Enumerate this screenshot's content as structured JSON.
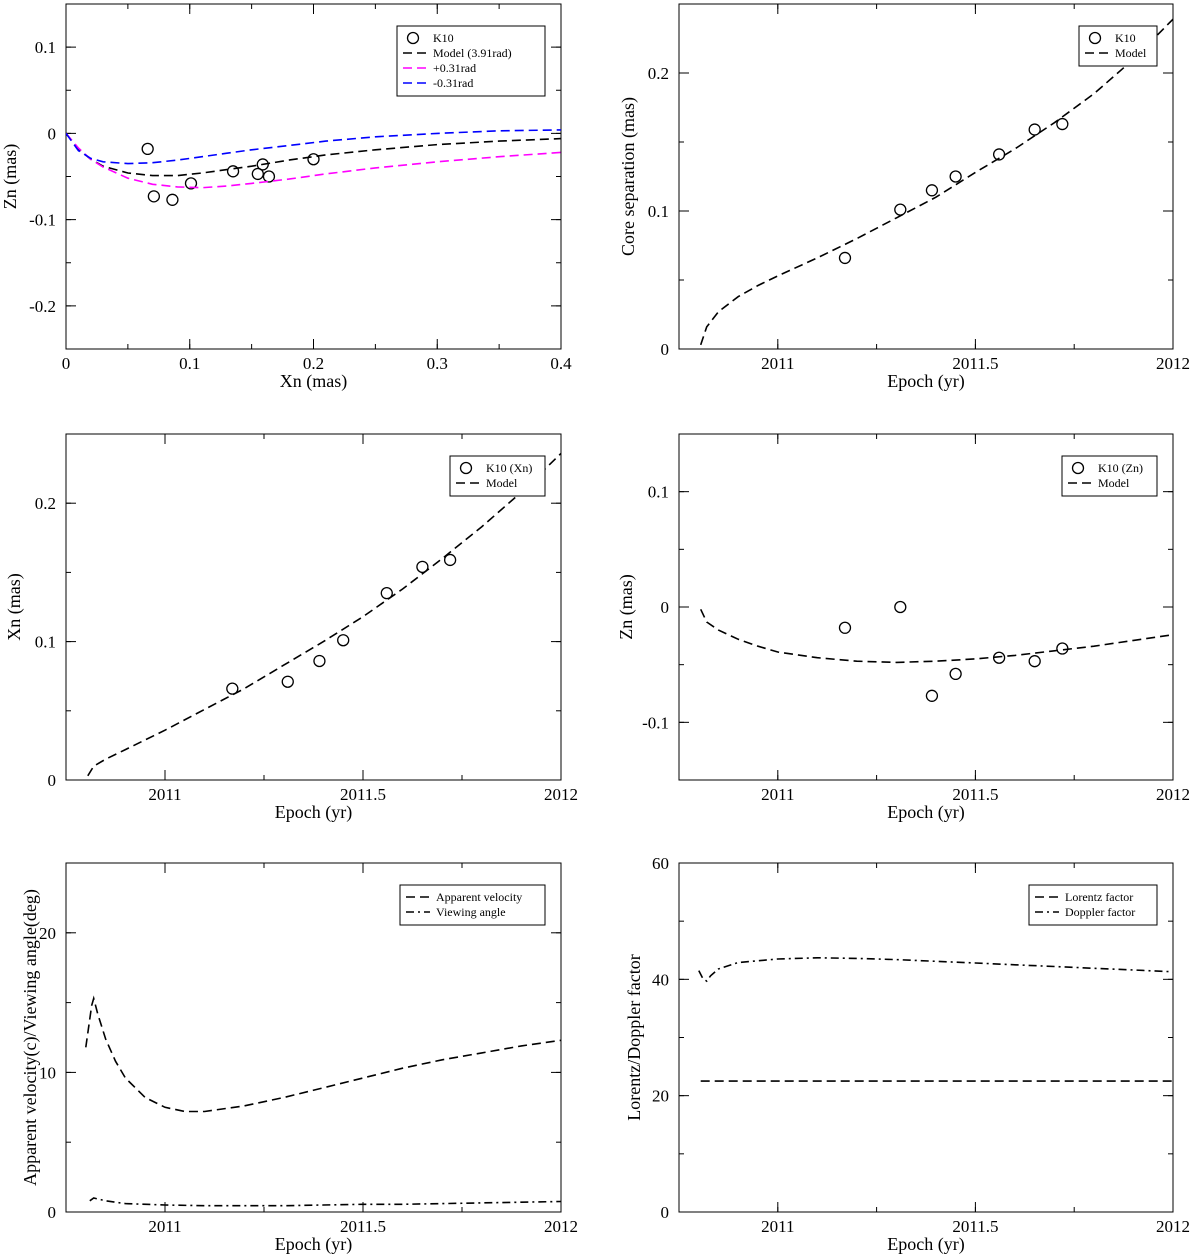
{
  "figure": {
    "background": "#ffffff"
  },
  "chart_data": [
    {
      "id": "p1",
      "type": "line",
      "title": "",
      "xlabel": "Xn (mas)",
      "ylabel": "Zn (mas)",
      "xlim": [
        0,
        0.4
      ],
      "ylim": [
        -0.25,
        0.15
      ],
      "xticks": [
        0,
        0.1,
        0.2,
        0.3,
        0.4
      ],
      "xtick_labels": [
        "0",
        "0.1",
        "0.2",
        "0.3",
        "0.4"
      ],
      "yticks": [
        -0.2,
        -0.1,
        0,
        0.1
      ],
      "ytick_labels": [
        "-0.2",
        "-0.1",
        "0",
        "0.1"
      ],
      "xminor": 0.05,
      "yminor": 0.05,
      "legend": {
        "position": "top-right"
      },
      "series": [
        {
          "name": "K10",
          "kind": "points",
          "color": "#000000",
          "x": [
            0.066,
            0.071,
            0.086,
            0.101,
            0.135,
            0.155,
            0.159,
            0.164,
            0.2
          ],
          "y": [
            -0.018,
            -0.073,
            -0.077,
            -0.058,
            -0.044,
            -0.047,
            -0.036,
            -0.05,
            -0.03
          ]
        },
        {
          "name": "Model (3.91rad)",
          "kind": "line",
          "dash": "dashed",
          "color": "#000000",
          "x": [
            0,
            0.01,
            0.02,
            0.03,
            0.05,
            0.07,
            0.09,
            0.11,
            0.13,
            0.15,
            0.18,
            0.21,
            0.25,
            0.3,
            0.35,
            0.4
          ],
          "y": [
            0,
            -0.018,
            -0.03,
            -0.038,
            -0.046,
            -0.049,
            -0.049,
            -0.046,
            -0.042,
            -0.038,
            -0.031,
            -0.025,
            -0.019,
            -0.013,
            -0.009,
            -0.006
          ]
        },
        {
          "name": "+0.31rad",
          "kind": "line",
          "dash": "dashed",
          "color": "#ff00ff",
          "x": [
            0,
            0.01,
            0.02,
            0.03,
            0.05,
            0.07,
            0.09,
            0.11,
            0.13,
            0.15,
            0.18,
            0.21,
            0.25,
            0.3,
            0.35,
            0.4
          ],
          "y": [
            0,
            -0.017,
            -0.03,
            -0.039,
            -0.052,
            -0.059,
            -0.062,
            -0.063,
            -0.061,
            -0.058,
            -0.053,
            -0.047,
            -0.04,
            -0.033,
            -0.027,
            -0.022
          ]
        },
        {
          "name": "-0.31rad",
          "kind": "line",
          "dash": "dashed",
          "color": "#0000ff",
          "x": [
            0,
            0.01,
            0.02,
            0.03,
            0.05,
            0.07,
            0.09,
            0.11,
            0.13,
            0.15,
            0.18,
            0.21,
            0.25,
            0.3,
            0.35,
            0.4
          ],
          "y": [
            0,
            -0.02,
            -0.029,
            -0.033,
            -0.035,
            -0.034,
            -0.031,
            -0.027,
            -0.023,
            -0.019,
            -0.014,
            -0.009,
            -0.004,
            0.0,
            0.003,
            0.004
          ]
        }
      ]
    },
    {
      "id": "p2",
      "type": "line",
      "title": "",
      "xlabel": "Epoch (yr)",
      "ylabel": "Core separation (mas)",
      "xlim": [
        2010.75,
        2012.0
      ],
      "ylim": [
        0,
        0.25
      ],
      "xticks": [
        2011,
        2011.5,
        2012
      ],
      "xtick_labels": [
        "2011",
        "2011.5",
        "2012"
      ],
      "yticks": [
        0,
        0.1,
        0.2
      ],
      "ytick_labels": [
        "0",
        "0.1",
        "0.2"
      ],
      "xminor": 0.25,
      "yminor": 0.05,
      "legend": {
        "position": "top-right"
      },
      "series": [
        {
          "name": "K10",
          "kind": "points",
          "color": "#000000",
          "x": [
            2011.17,
            2011.31,
            2011.39,
            2011.45,
            2011.56,
            2011.65,
            2011.72
          ],
          "y": [
            0.066,
            0.101,
            0.115,
            0.125,
            0.141,
            0.159,
            0.163
          ]
        },
        {
          "name": "Model",
          "kind": "line",
          "dash": "dashed",
          "color": "#000000",
          "x": [
            2010.805,
            2010.82,
            2010.85,
            2010.9,
            2010.95,
            2011.0,
            2011.1,
            2011.2,
            2011.3,
            2011.4,
            2011.5,
            2011.6,
            2011.7,
            2011.8,
            2011.9,
            2012.0
          ],
          "y": [
            0.003,
            0.016,
            0.027,
            0.038,
            0.046,
            0.053,
            0.066,
            0.08,
            0.095,
            0.11,
            0.128,
            0.145,
            0.164,
            0.185,
            0.21,
            0.239
          ]
        }
      ]
    },
    {
      "id": "p3",
      "type": "line",
      "title": "",
      "xlabel": "Epoch (yr)",
      "ylabel": "Xn (mas)",
      "xlim": [
        2010.75,
        2012.0
      ],
      "ylim": [
        0,
        0.25
      ],
      "xticks": [
        2011,
        2011.5,
        2012
      ],
      "xtick_labels": [
        "2011",
        "2011.5",
        "2012"
      ],
      "yticks": [
        0,
        0.1,
        0.2
      ],
      "ytick_labels": [
        "0",
        "0.1",
        "0.2"
      ],
      "xminor": 0.25,
      "yminor": 0.05,
      "legend": {
        "position": "top-right"
      },
      "series": [
        {
          "name": "K10 (Xn)",
          "kind": "points",
          "color": "#000000",
          "x": [
            2011.17,
            2011.31,
            2011.39,
            2011.45,
            2011.56,
            2011.65,
            2011.72
          ],
          "y": [
            0.066,
            0.071,
            0.086,
            0.101,
            0.135,
            0.154,
            0.159
          ]
        },
        {
          "name": "Model",
          "kind": "line",
          "dash": "dashed",
          "color": "#000000",
          "x": [
            2010.805,
            2010.82,
            2010.85,
            2010.9,
            2010.95,
            2011.0,
            2011.1,
            2011.2,
            2011.3,
            2011.4,
            2011.5,
            2011.6,
            2011.7,
            2011.8,
            2011.9,
            2012.0
          ],
          "y": [
            0.003,
            0.01,
            0.015,
            0.022,
            0.029,
            0.036,
            0.051,
            0.066,
            0.083,
            0.1,
            0.118,
            0.138,
            0.16,
            0.183,
            0.208,
            0.236
          ]
        }
      ]
    },
    {
      "id": "p4",
      "type": "line",
      "title": "",
      "xlabel": "Epoch (yr)",
      "ylabel": "Zn (mas)",
      "xlim": [
        2010.75,
        2012.0
      ],
      "ylim": [
        -0.15,
        0.15
      ],
      "xticks": [
        2011,
        2011.5,
        2012
      ],
      "xtick_labels": [
        "2011",
        "2011.5",
        "2012"
      ],
      "yticks": [
        -0.1,
        0,
        0.1
      ],
      "ytick_labels": [
        "-0.1",
        "0",
        "0.1"
      ],
      "xminor": 0.25,
      "yminor": 0.05,
      "legend": {
        "position": "top-right"
      },
      "series": [
        {
          "name": "K10 (Zn)",
          "kind": "points",
          "color": "#000000",
          "x": [
            2011.17,
            2011.31,
            2011.39,
            2011.45,
            2011.56,
            2011.65,
            2011.72
          ],
          "y": [
            -0.018,
            0.0,
            -0.077,
            -0.058,
            -0.044,
            -0.047,
            -0.036
          ]
        },
        {
          "name": "Model",
          "kind": "line",
          "dash": "dashed",
          "color": "#000000",
          "x": [
            2010.805,
            2010.82,
            2010.85,
            2010.9,
            2010.95,
            2011.0,
            2011.1,
            2011.2,
            2011.3,
            2011.4,
            2011.5,
            2011.6,
            2011.7,
            2011.8,
            2011.9,
            2012.0
          ],
          "y": [
            -0.002,
            -0.013,
            -0.02,
            -0.028,
            -0.034,
            -0.039,
            -0.044,
            -0.047,
            -0.048,
            -0.047,
            -0.045,
            -0.042,
            -0.038,
            -0.034,
            -0.029,
            -0.024
          ]
        }
      ]
    },
    {
      "id": "p5",
      "type": "line",
      "title": "",
      "xlabel": "Epoch (yr)",
      "ylabel": "Apparent velocity(c)/Viewing angle(deg)",
      "xlim": [
        2010.75,
        2012.0
      ],
      "ylim": [
        0,
        25
      ],
      "xticks": [
        2011,
        2011.5,
        2012
      ],
      "xtick_labels": [
        "2011",
        "2011.5",
        "2012"
      ],
      "yticks": [
        0,
        10,
        20
      ],
      "ytick_labels": [
        "0",
        "10",
        "20"
      ],
      "xminor": 0.25,
      "yminor": 5,
      "legend": {
        "position": "top-right"
      },
      "series": [
        {
          "name": "Apparent velocity",
          "kind": "line",
          "dash": "dashed",
          "color": "#000000",
          "x": [
            2010.8,
            2010.815,
            2010.82,
            2010.83,
            2010.85,
            2010.875,
            2010.9,
            2010.95,
            2011.0,
            2011.05,
            2011.1,
            2011.2,
            2011.3,
            2011.4,
            2011.5,
            2011.6,
            2011.7,
            2011.8,
            2011.9,
            2012.0
          ],
          "y": [
            11.8,
            14.8,
            15.3,
            14.2,
            12.4,
            10.8,
            9.6,
            8.2,
            7.5,
            7.2,
            7.2,
            7.6,
            8.2,
            8.9,
            9.6,
            10.3,
            10.9,
            11.4,
            11.9,
            12.3
          ]
        },
        {
          "name": "Viewing angle",
          "kind": "line",
          "dash": "dashdot",
          "color": "#000000",
          "x": [
            2010.81,
            2010.82,
            2010.85,
            2010.9,
            2011.0,
            2011.1,
            2011.2,
            2011.3,
            2011.4,
            2011.5,
            2011.6,
            2011.7,
            2011.8,
            2011.9,
            2012.0
          ],
          "y": [
            0.8,
            1.0,
            0.8,
            0.6,
            0.5,
            0.45,
            0.45,
            0.45,
            0.5,
            0.55,
            0.55,
            0.6,
            0.65,
            0.7,
            0.75
          ]
        }
      ]
    },
    {
      "id": "p6",
      "type": "line",
      "title": "",
      "xlabel": "Epoch (yr)",
      "ylabel": "Lorentz/Doppler factor",
      "xlim": [
        2010.75,
        2012.0
      ],
      "ylim": [
        0,
        60
      ],
      "xticks": [
        2011,
        2011.5,
        2012
      ],
      "xtick_labels": [
        "2011",
        "2011.5",
        "2012"
      ],
      "yticks": [
        0,
        20,
        40,
        60
      ],
      "ytick_labels": [
        "0",
        "20",
        "40",
        "60"
      ],
      "xminor": 0.25,
      "yminor": 10,
      "legend": {
        "position": "top-right"
      },
      "series": [
        {
          "name": "Lorentz factor",
          "kind": "line",
          "dash": "dashed",
          "color": "#000000",
          "x": [
            2010.805,
            2012.0
          ],
          "y": [
            22.5,
            22.5
          ]
        },
        {
          "name": "Doppler factor",
          "kind": "line",
          "dash": "dashdot",
          "color": "#000000",
          "x": [
            2010.8,
            2010.81,
            2010.82,
            2010.83,
            2010.85,
            2010.9,
            2011.0,
            2011.1,
            2011.2,
            2011.3,
            2011.4,
            2011.5,
            2011.6,
            2011.7,
            2011.8,
            2011.9,
            2012.0
          ],
          "y": [
            41.5,
            40.2,
            39.7,
            40.6,
            41.8,
            42.9,
            43.5,
            43.7,
            43.6,
            43.4,
            43.1,
            42.8,
            42.5,
            42.2,
            41.9,
            41.6,
            41.3
          ]
        }
      ]
    }
  ]
}
